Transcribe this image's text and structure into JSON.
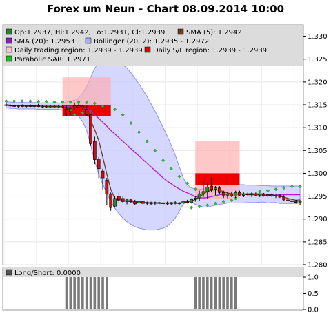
{
  "chart_data": {
    "type": "candlestick",
    "title": "Forex um Neun - Chart 08.09.2014 10:00",
    "legend": [
      {
        "label": "Op:1.2937, Hi:1.2942, Lo:1.2931, Cl:1.2939",
        "color": "#2e7d32"
      },
      {
        "label": "SMA (5): 1.2942",
        "color": "#6d3a1c"
      },
      {
        "label": "SMA (20): 1.2953",
        "color": "#8a1cc8"
      },
      {
        "label": "Bollinger (20, 2): 1.2935 - 1.2972",
        "color": "#aab0ff"
      },
      {
        "label": "Daily trading region: 1.2939 - 1.2939",
        "color": "#f7c9c9"
      },
      {
        "label": "Daily S/L region: 1.2939 - 1.2939",
        "color": "#e00000"
      },
      {
        "label": "Parabolic SAR: 1.2971",
        "color": "#22bb22"
      }
    ],
    "y_axis": {
      "min": 1.28,
      "max": 1.3325,
      "ticks": [
        "1.280",
        "1.285",
        "1.290",
        "1.295",
        "1.300",
        "1.305",
        "1.310",
        "1.315",
        "1.320",
        "1.325",
        "1.330"
      ]
    },
    "candles": [
      {
        "o": 1.315,
        "h": 1.3153,
        "l": 1.3147,
        "c": 1.3149
      },
      {
        "o": 1.3149,
        "h": 1.3152,
        "l": 1.3145,
        "c": 1.3148
      },
      {
        "o": 1.3148,
        "h": 1.3151,
        "l": 1.3145,
        "c": 1.3147
      },
      {
        "o": 1.3147,
        "h": 1.315,
        "l": 1.3144,
        "c": 1.3148
      },
      {
        "o": 1.3148,
        "h": 1.3151,
        "l": 1.3145,
        "c": 1.3147
      },
      {
        "o": 1.3147,
        "h": 1.315,
        "l": 1.3144,
        "c": 1.3148
      },
      {
        "o": 1.3148,
        "h": 1.3151,
        "l": 1.3145,
        "c": 1.3147
      },
      {
        "o": 1.3147,
        "h": 1.315,
        "l": 1.3144,
        "c": 1.3148
      },
      {
        "o": 1.3148,
        "h": 1.3152,
        "l": 1.3145,
        "c": 1.3146
      },
      {
        "o": 1.3146,
        "h": 1.3149,
        "l": 1.3143,
        "c": 1.3147
      },
      {
        "o": 1.3147,
        "h": 1.315,
        "l": 1.3144,
        "c": 1.3146
      },
      {
        "o": 1.3146,
        "h": 1.3149,
        "l": 1.3143,
        "c": 1.3147
      },
      {
        "o": 1.3147,
        "h": 1.315,
        "l": 1.3144,
        "c": 1.3146
      },
      {
        "o": 1.3146,
        "h": 1.3149,
        "l": 1.3143,
        "c": 1.3147
      },
      {
        "o": 1.3147,
        "h": 1.315,
        "l": 1.3144,
        "c": 1.3145
      },
      {
        "o": 1.314,
        "h": 1.315,
        "l": 1.3125,
        "c": 1.313
      },
      {
        "o": 1.3135,
        "h": 1.3145,
        "l": 1.3128,
        "c": 1.3142
      },
      {
        "o": 1.3148,
        "h": 1.3155,
        "l": 1.314,
        "c": 1.3143
      },
      {
        "o": 1.3148,
        "h": 1.3153,
        "l": 1.3143,
        "c": 1.3145
      },
      {
        "o": 1.3147,
        "h": 1.315,
        "l": 1.3141,
        "c": 1.3143
      },
      {
        "o": 1.314,
        "h": 1.3148,
        "l": 1.3125,
        "c": 1.3128
      },
      {
        "o": 1.3128,
        "h": 1.313,
        "l": 1.306,
        "c": 1.3065
      },
      {
        "o": 1.307,
        "h": 1.308,
        "l": 1.302,
        "c": 1.303
      },
      {
        "o": 1.303,
        "h": 1.3035,
        "l": 1.299,
        "c": 1.301
      },
      {
        "o": 1.3005,
        "h": 1.301,
        "l": 1.2965,
        "c": 1.299
      },
      {
        "o": 1.2985,
        "h": 1.299,
        "l": 1.293,
        "c": 1.2955
      },
      {
        "o": 1.2955,
        "h": 1.2958,
        "l": 1.2918,
        "c": 1.2925
      },
      {
        "o": 1.2928,
        "h": 1.295,
        "l": 1.2925,
        "c": 1.2945
      },
      {
        "o": 1.295,
        "h": 1.296,
        "l": 1.2935,
        "c": 1.2942
      },
      {
        "o": 1.2945,
        "h": 1.295,
        "l": 1.2935,
        "c": 1.2938
      },
      {
        "o": 1.2938,
        "h": 1.2945,
        "l": 1.2932,
        "c": 1.2942
      },
      {
        "o": 1.2942,
        "h": 1.2945,
        "l": 1.2935,
        "c": 1.2938
      },
      {
        "o": 1.2938,
        "h": 1.2942,
        "l": 1.293,
        "c": 1.2933
      },
      {
        "o": 1.2935,
        "h": 1.294,
        "l": 1.293,
        "c": 1.2938
      },
      {
        "o": 1.2938,
        "h": 1.294,
        "l": 1.293,
        "c": 1.2934
      },
      {
        "o": 1.2934,
        "h": 1.2938,
        "l": 1.293,
        "c": 1.2936
      },
      {
        "o": 1.2936,
        "h": 1.2938,
        "l": 1.293,
        "c": 1.2933
      },
      {
        "o": 1.2934,
        "h": 1.2938,
        "l": 1.293,
        "c": 1.2936
      },
      {
        "o": 1.2936,
        "h": 1.2938,
        "l": 1.2932,
        "c": 1.2934
      },
      {
        "o": 1.2934,
        "h": 1.2937,
        "l": 1.2931,
        "c": 1.2935
      },
      {
        "o": 1.2935,
        "h": 1.2938,
        "l": 1.2931,
        "c": 1.2933
      },
      {
        "o": 1.2933,
        "h": 1.2937,
        "l": 1.293,
        "c": 1.2936
      },
      {
        "o": 1.2936,
        "h": 1.2939,
        "l": 1.2932,
        "c": 1.2934
      },
      {
        "o": 1.2934,
        "h": 1.2937,
        "l": 1.2931,
        "c": 1.2935
      },
      {
        "o": 1.2935,
        "h": 1.294,
        "l": 1.2933,
        "c": 1.2938
      },
      {
        "o": 1.2938,
        "h": 1.2942,
        "l": 1.2934,
        "c": 1.2936
      },
      {
        "o": 1.2936,
        "h": 1.2945,
        "l": 1.2934,
        "c": 1.2943
      },
      {
        "o": 1.2943,
        "h": 1.295,
        "l": 1.2938,
        "c": 1.2946
      },
      {
        "o": 1.2946,
        "h": 1.2962,
        "l": 1.294,
        "c": 1.2955
      },
      {
        "o": 1.2955,
        "h": 1.2982,
        "l": 1.2948,
        "c": 1.296
      },
      {
        "o": 1.296,
        "h": 1.2978,
        "l": 1.2945,
        "c": 1.297
      },
      {
        "o": 1.2972,
        "h": 1.299,
        "l": 1.296,
        "c": 1.2965
      },
      {
        "o": 1.2965,
        "h": 1.2972,
        "l": 1.2952,
        "c": 1.2968
      },
      {
        "o": 1.2968,
        "h": 1.2972,
        "l": 1.2955,
        "c": 1.2958
      },
      {
        "o": 1.2958,
        "h": 1.2962,
        "l": 1.2946,
        "c": 1.2952
      },
      {
        "o": 1.2952,
        "h": 1.2958,
        "l": 1.2945,
        "c": 1.2955
      },
      {
        "o": 1.2955,
        "h": 1.296,
        "l": 1.2948,
        "c": 1.295
      },
      {
        "o": 1.295,
        "h": 1.2962,
        "l": 1.2946,
        "c": 1.2958
      },
      {
        "o": 1.2958,
        "h": 1.2962,
        "l": 1.295,
        "c": 1.2952
      },
      {
        "o": 1.2952,
        "h": 1.2958,
        "l": 1.2948,
        "c": 1.2955
      },
      {
        "o": 1.2955,
        "h": 1.2958,
        "l": 1.295,
        "c": 1.2953
      },
      {
        "o": 1.2953,
        "h": 1.2957,
        "l": 1.2948,
        "c": 1.2955
      },
      {
        "o": 1.2955,
        "h": 1.2958,
        "l": 1.295,
        "c": 1.2952
      },
      {
        "o": 1.2952,
        "h": 1.2956,
        "l": 1.2948,
        "c": 1.2954
      },
      {
        "o": 1.2954,
        "h": 1.2957,
        "l": 1.2949,
        "c": 1.2951
      },
      {
        "o": 1.2951,
        "h": 1.2955,
        "l": 1.2947,
        "c": 1.2953
      },
      {
        "o": 1.2953,
        "h": 1.2956,
        "l": 1.2948,
        "c": 1.295
      },
      {
        "o": 1.295,
        "h": 1.2954,
        "l": 1.2946,
        "c": 1.2952
      },
      {
        "o": 1.2952,
        "h": 1.2955,
        "l": 1.2946,
        "c": 1.2948
      },
      {
        "o": 1.2948,
        "h": 1.2952,
        "l": 1.294,
        "c": 1.2942
      },
      {
        "o": 1.2942,
        "h": 1.2946,
        "l": 1.2936,
        "c": 1.294
      },
      {
        "o": 1.294,
        "h": 1.2944,
        "l": 1.2936,
        "c": 1.2938
      },
      {
        "o": 1.2938,
        "h": 1.2942,
        "l": 1.2934,
        "c": 1.2937
      },
      {
        "o": 1.2937,
        "h": 1.2942,
        "l": 1.2931,
        "c": 1.2939
      }
    ],
    "sma5": [
      1.315,
      1.3149,
      1.3148,
      1.3148,
      1.3148,
      1.3147,
      1.3147,
      1.3147,
      1.3147,
      1.3147,
      1.3146,
      1.3146,
      1.3146,
      1.3146,
      1.3146,
      1.3143,
      1.314,
      1.3139,
      1.3138,
      1.314,
      1.3136,
      1.3116,
      1.3095,
      1.3072,
      1.3036,
      1.2998,
      1.2965,
      1.2945,
      1.294,
      1.294,
      1.2939,
      1.2938,
      1.2937,
      1.2937,
      1.2936,
      1.2936,
      1.2935,
      1.2935,
      1.2935,
      1.2935,
      1.2935,
      1.2935,
      1.2935,
      1.2935,
      1.2936,
      1.2937,
      1.2939,
      1.2943,
      1.2948,
      1.2955,
      1.296,
      1.2963,
      1.2964,
      1.2963,
      1.296,
      1.2957,
      1.2955,
      1.2954,
      1.2954,
      1.2954,
      1.2953,
      1.2953,
      1.2953,
      1.2953,
      1.2952,
      1.2952,
      1.2951,
      1.2951,
      1.295,
      1.2948,
      1.2945,
      1.2943,
      1.2941,
      1.2942
    ],
    "sma20": [
      1.315,
      1.3149,
      1.3149,
      1.3148,
      1.3148,
      1.3148,
      1.3148,
      1.3148,
      1.3147,
      1.3147,
      1.3147,
      1.3147,
      1.3147,
      1.3147,
      1.3146,
      1.3146,
      1.3145,
      1.3145,
      1.3145,
      1.3144,
      1.3142,
      1.3136,
      1.3128,
      1.312,
      1.3112,
      1.3103,
      1.3094,
      1.3086,
      1.3078,
      1.307,
      1.3062,
      1.3054,
      1.3046,
      1.3038,
      1.303,
      1.3022,
      1.3014,
      1.3006,
      1.2998,
      1.299,
      1.2983,
      1.2977,
      1.2971,
      1.2966,
      1.2961,
      1.2957,
      1.2953,
      1.2949,
      1.2947,
      1.2946,
      1.2947,
      1.2949,
      1.2951,
      1.2953,
      1.2954,
      1.2955,
      1.2955,
      1.2955,
      1.2955,
      1.2955,
      1.2955,
      1.2955,
      1.2955,
      1.2955,
      1.2955,
      1.2954,
      1.2954,
      1.2954,
      1.2953,
      1.2953,
      1.2953,
      1.2953,
      1.2953,
      1.2953
    ],
    "bollinger_upper": [
      1.3156,
      1.3156,
      1.3155,
      1.3155,
      1.3155,
      1.3155,
      1.3155,
      1.3155,
      1.3154,
      1.3154,
      1.3154,
      1.3154,
      1.3154,
      1.3154,
      1.3154,
      1.3156,
      1.3158,
      1.316,
      1.3165,
      1.3175,
      1.319,
      1.321,
      1.323,
      1.3242,
      1.3248,
      1.325,
      1.325,
      1.3248,
      1.3244,
      1.3238,
      1.323,
      1.322,
      1.3208,
      1.3196,
      1.3182,
      1.3168,
      1.3152,
      1.3136,
      1.3118,
      1.31,
      1.3082,
      1.3062,
      1.304,
      1.3015,
      1.299,
      1.2975,
      1.2968,
      1.2966,
      1.2965,
      1.2966,
      1.2968,
      1.297,
      1.2972,
      1.2974,
      1.2975,
      1.2975,
      1.2975,
      1.2975,
      1.2975,
      1.2975,
      1.2974,
      1.2974,
      1.2974,
      1.2973,
      1.2973,
      1.2973,
      1.2972,
      1.2972,
      1.2972,
      1.2972,
      1.2972,
      1.2972,
      1.2972,
      1.2972
    ],
    "bollinger_lower": [
      1.3143,
      1.3142,
      1.3142,
      1.3141,
      1.3141,
      1.3141,
      1.3141,
      1.3141,
      1.314,
      1.314,
      1.314,
      1.314,
      1.314,
      1.314,
      1.3138,
      1.3136,
      1.3132,
      1.313,
      1.3125,
      1.3113,
      1.3094,
      1.3062,
      1.3026,
      1.2998,
      1.2976,
      1.2956,
      1.2938,
      1.2924,
      1.2912,
      1.2902,
      1.2894,
      1.2888,
      1.2883,
      1.288,
      1.2878,
      1.2876,
      1.2876,
      1.2876,
      1.2878,
      1.288,
      1.2884,
      1.2892,
      1.2902,
      1.2917,
      1.2932,
      1.2939,
      1.2938,
      1.2932,
      1.2929,
      1.2926,
      1.2926,
      1.2928,
      1.293,
      1.2932,
      1.2933,
      1.2935,
      1.2935,
      1.2935,
      1.2935,
      1.2935,
      1.2936,
      1.2936,
      1.2936,
      1.2937,
      1.2937,
      1.2935,
      1.2936,
      1.2936,
      1.2934,
      1.2934,
      1.2934,
      1.2934,
      1.2934,
      1.2935
    ],
    "parabolic_sar": [
      {
        "i": 0,
        "v": 1.3158
      },
      {
        "i": 2,
        "v": 1.3158
      },
      {
        "i": 4,
        "v": 1.3158
      },
      {
        "i": 6,
        "v": 1.3158
      },
      {
        "i": 8,
        "v": 1.3157
      },
      {
        "i": 10,
        "v": 1.3157
      },
      {
        "i": 12,
        "v": 1.3156
      },
      {
        "i": 14,
        "v": 1.3156
      },
      {
        "i": 16,
        "v": 1.3156
      },
      {
        "i": 18,
        "v": 1.3156
      },
      {
        "i": 20,
        "v": 1.3155
      },
      {
        "i": 22,
        "v": 1.3153
      },
      {
        "i": 24,
        "v": 1.3147
      },
      {
        "i": 17,
        "v": 1.3128
      },
      {
        "i": 19,
        "v": 1.3132
      },
      {
        "i": 21,
        "v": 1.3135
      },
      {
        "i": 27,
        "v": 1.314
      },
      {
        "i": 29,
        "v": 1.3128
      },
      {
        "i": 31,
        "v": 1.311
      },
      {
        "i": 33,
        "v": 1.309
      },
      {
        "i": 35,
        "v": 1.307
      },
      {
        "i": 37,
        "v": 1.305
      },
      {
        "i": 39,
        "v": 1.3028
      },
      {
        "i": 41,
        "v": 1.301
      },
      {
        "i": 43,
        "v": 1.2993
      },
      {
        "i": 45,
        "v": 1.2978
      },
      {
        "i": 47,
        "v": 1.2965
      },
      {
        "i": 49,
        "v": 1.2955
      },
      {
        "i": 46,
        "v": 1.2925
      },
      {
        "i": 48,
        "v": 1.2927
      },
      {
        "i": 50,
        "v": 1.293
      },
      {
        "i": 52,
        "v": 1.2934
      },
      {
        "i": 54,
        "v": 1.2938
      },
      {
        "i": 56,
        "v": 1.2941
      },
      {
        "i": 57,
        "v": 1.2945
      },
      {
        "i": 59,
        "v": 1.2952
      },
      {
        "i": 61,
        "v": 1.2955
      },
      {
        "i": 63,
        "v": 1.296
      },
      {
        "i": 65,
        "v": 1.2962
      },
      {
        "i": 67,
        "v": 1.2965
      },
      {
        "i": 69,
        "v": 1.2968
      },
      {
        "i": 71,
        "v": 1.2971
      },
      {
        "i": 73,
        "v": 1.2971
      }
    ],
    "regions": [
      {
        "kind": "trading",
        "i0": 14,
        "i1": 26,
        "y0": 1.315,
        "y1": 1.321
      },
      {
        "kind": "sl",
        "i0": 14,
        "i1": 26,
        "y0": 1.3125,
        "y1": 1.315
      },
      {
        "kind": "trading",
        "i0": 47,
        "i1": 58,
        "y0": 1.2945,
        "y1": 1.307
      },
      {
        "kind": "sl",
        "i0": 47,
        "i1": 58,
        "y0": 1.2975,
        "y1": 1.3
      }
    ],
    "sub_chart": {
      "legend": "Long/Short: 0.0000",
      "y_ticks": [
        "0.0",
        "0.5",
        "1.0"
      ],
      "bar_groups": [
        {
          "i0": 15,
          "i1": 25,
          "v": 1.0
        },
        {
          "i0": 47,
          "i1": 57,
          "v": 1.0
        }
      ]
    }
  }
}
